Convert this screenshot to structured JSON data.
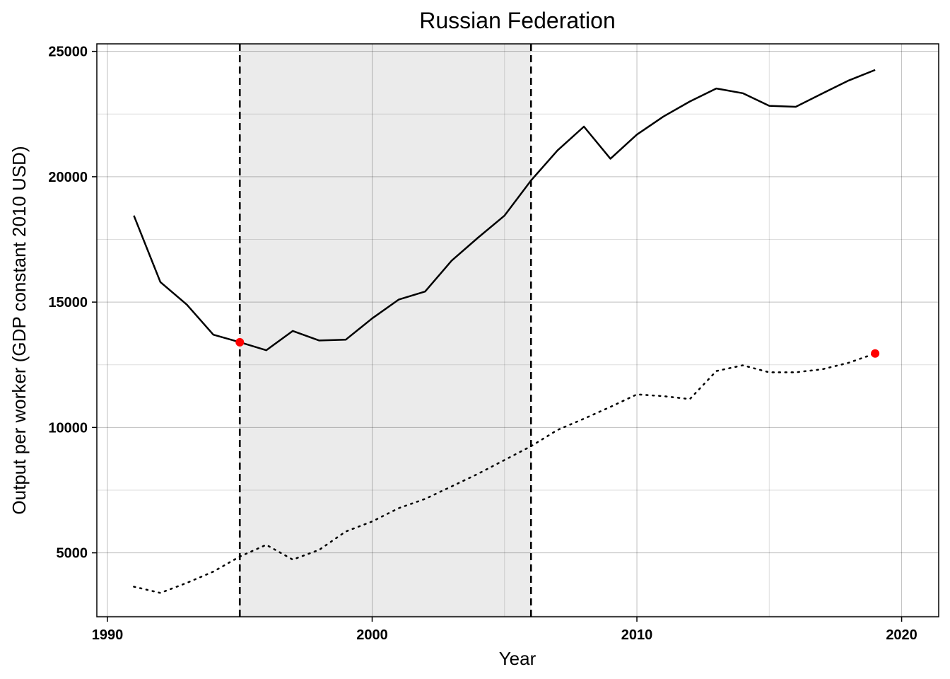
{
  "chart_data": {
    "type": "line",
    "title": "Russian Federation",
    "xlabel": "Year",
    "ylabel": "Output per worker (GDP constant 2010 USD)",
    "xlim": [
      1989.6,
      2021.4
    ],
    "ylim": [
      2450,
      25300
    ],
    "x_ticks": [
      1990,
      2000,
      2010,
      2020
    ],
    "y_ticks": [
      5000,
      10000,
      15000,
      20000,
      25000
    ],
    "grid": true,
    "legend": "none",
    "shaded_region": {
      "x_start": 1995,
      "x_end": 2006,
      "color": "#ebebeb"
    },
    "vlines": [
      1995,
      2006
    ],
    "series": [
      {
        "style": "solid",
        "color": "#000000",
        "x": [
          1991,
          1992,
          1993,
          1994,
          1995,
          1996,
          1997,
          1998,
          1999,
          2000,
          2001,
          2002,
          2003,
          2004,
          2005,
          2006,
          2007,
          2008,
          2009,
          2010,
          2011,
          2012,
          2013,
          2014,
          2015,
          2016,
          2017,
          2018,
          2019
        ],
        "values": [
          18450,
          15800,
          14900,
          13700,
          13400,
          13080,
          13850,
          13470,
          13500,
          14350,
          15100,
          15420,
          16650,
          17570,
          18450,
          19850,
          21050,
          22000,
          20720,
          21680,
          22400,
          23000,
          23520,
          23330,
          22830,
          22790,
          23320,
          23840,
          24260
        ]
      },
      {
        "style": "dotted",
        "color": "#000000",
        "x": [
          1991,
          1992,
          1993,
          1994,
          1995,
          1996,
          1997,
          1998,
          1999,
          2000,
          2001,
          2002,
          2003,
          2004,
          2005,
          2006,
          2007,
          2008,
          2009,
          2010,
          2011,
          2012,
          2013,
          2014,
          2015,
          2016,
          2017,
          2018,
          2019
        ],
        "values": [
          3650,
          3400,
          3800,
          4250,
          4850,
          5320,
          4730,
          5120,
          5850,
          6250,
          6780,
          7150,
          7650,
          8150,
          8700,
          9250,
          9900,
          10350,
          10820,
          11320,
          11250,
          11130,
          12250,
          12480,
          12200,
          12200,
          12320,
          12580,
          12950
        ]
      }
    ],
    "highlight_points": [
      {
        "x": 1995,
        "y": 13400,
        "color": "#ff0000"
      },
      {
        "x": 2019,
        "y": 12950,
        "color": "#ff0000"
      }
    ]
  }
}
